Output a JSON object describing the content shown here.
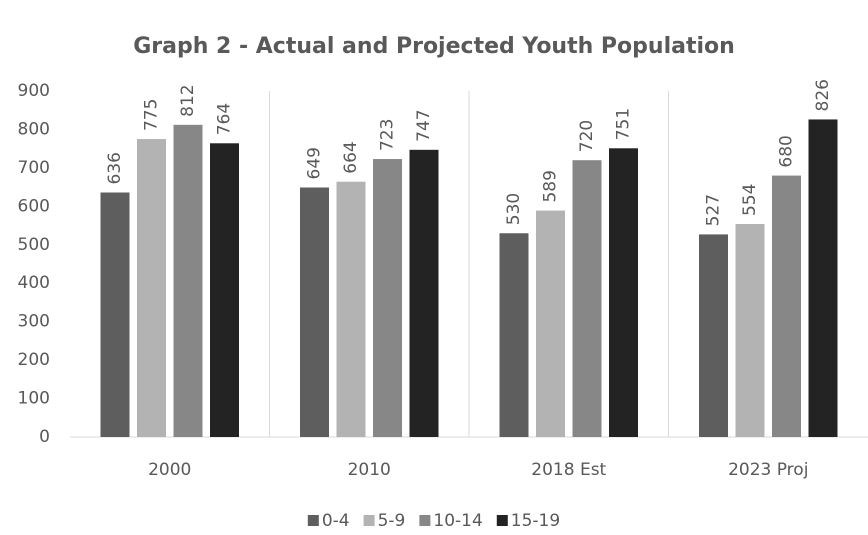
{
  "chart_data": {
    "type": "bar",
    "title": "Graph 2 - Actual and Projected Youth Population",
    "categories": [
      "2000",
      "2010",
      "2018 Est",
      "2023 Proj"
    ],
    "series": [
      {
        "name": "0-4",
        "color": "#5e5e5e",
        "values": [
          636,
          649,
          530,
          527
        ]
      },
      {
        "name": "5-9",
        "color": "#b3b3b3",
        "values": [
          775,
          664,
          589,
          554
        ]
      },
      {
        "name": "10-14",
        "color": "#878787",
        "values": [
          812,
          723,
          720,
          680
        ]
      },
      {
        "name": "15-19",
        "color": "#232323",
        "values": [
          764,
          747,
          751,
          826
        ]
      }
    ],
    "ylim": [
      0,
      900
    ],
    "yticks": [
      0,
      100,
      200,
      300,
      400,
      500,
      600,
      700,
      800,
      900
    ],
    "grid": false,
    "legend": "bottom"
  }
}
